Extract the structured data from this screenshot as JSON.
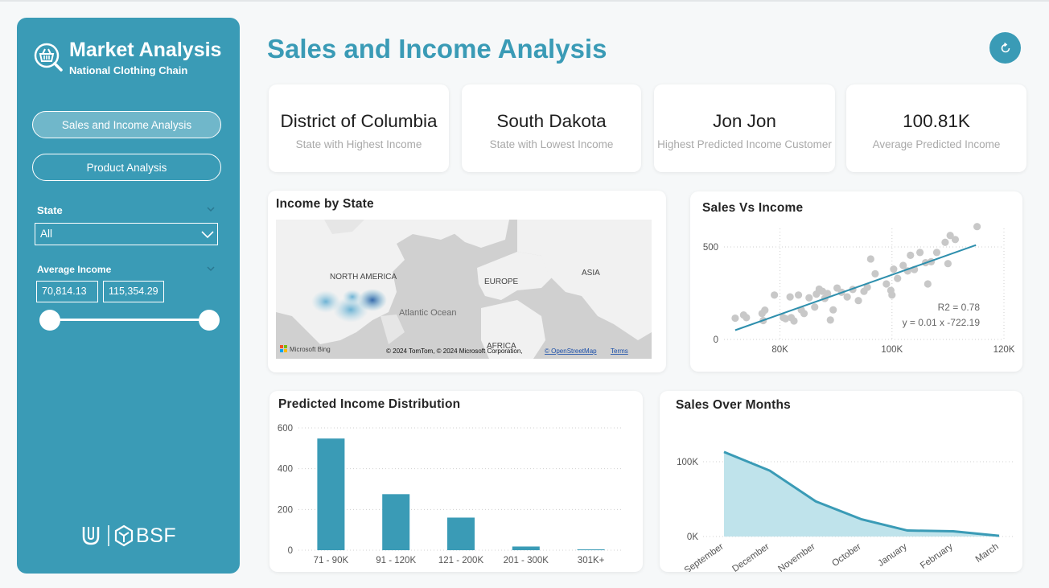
{
  "sidebar": {
    "app_title": "Market Analysis",
    "app_subtitle": "National Clothing Chain",
    "nav": [
      {
        "label": "Sales and Income Analysis",
        "active": true
      },
      {
        "label": "Product Analysis",
        "active": false
      }
    ],
    "filters": {
      "state_label": "State",
      "state_value": "All",
      "income_label": "Average Income",
      "income_min": "70,814.13",
      "income_max": "115,354.29"
    },
    "brand": "BSF"
  },
  "header": {
    "title": "Sales and Income Analysis"
  },
  "kpis": [
    {
      "value": "District of Columbia",
      "label": "State with Highest Income"
    },
    {
      "value": "South Dakota",
      "label": "State with Lowest Income"
    },
    {
      "value": "Jon Jon",
      "label": "Highest Predicted Income Customer"
    },
    {
      "value": "100.81K",
      "label": "Average Predicted Income"
    }
  ],
  "map": {
    "title": "Income by State",
    "labels": [
      "NORTH AMERICA",
      "EUROPE",
      "ASIA",
      "Atlantic Ocean",
      "AFRICA"
    ],
    "provider": "Microsoft Bing",
    "attribution": "© 2024 TomTom, © 2024 Microsoft Corporation,",
    "osm_link": "© OpenStreetMap",
    "terms_link": "Terms"
  },
  "colors": {
    "accent": "#3a9bb6",
    "scatter_point": "#c8c8c8",
    "trend": "#2e8fad",
    "area_fill": "#bfe3eb"
  },
  "charts": [
    {
      "type": "scatter",
      "title": "Sales Vs Income",
      "xlim": [
        70000,
        120000
      ],
      "ylim": [
        0,
        600
      ],
      "x_ticks": [
        "80K",
        "100K",
        "120K"
      ],
      "y_ticks": [
        "0",
        "500"
      ],
      "annotations": [
        "R2 = 0.78",
        "y = 0.01 x -722.19"
      ],
      "points": [
        [
          72000,
          115
        ],
        [
          73500,
          132
        ],
        [
          74000,
          118
        ],
        [
          76800,
          140
        ],
        [
          77300,
          158
        ],
        [
          77000,
          102
        ],
        [
          79000,
          240
        ],
        [
          80600,
          118
        ],
        [
          81000,
          112
        ],
        [
          82000,
          118
        ],
        [
          82500,
          100
        ],
        [
          81800,
          230
        ],
        [
          83300,
          240
        ],
        [
          83800,
          160
        ],
        [
          84300,
          140
        ],
        [
          85200,
          225
        ],
        [
          86200,
          175
        ],
        [
          86500,
          245
        ],
        [
          87000,
          272
        ],
        [
          87600,
          260
        ],
        [
          88000,
          222
        ],
        [
          88500,
          248
        ],
        [
          89000,
          105
        ],
        [
          89500,
          160
        ],
        [
          90200,
          278
        ],
        [
          91000,
          255
        ],
        [
          92000,
          230
        ],
        [
          93000,
          270
        ],
        [
          94000,
          210
        ],
        [
          95000,
          260
        ],
        [
          95600,
          282
        ],
        [
          96200,
          435
        ],
        [
          97000,
          355
        ],
        [
          99000,
          300
        ],
        [
          99800,
          265
        ],
        [
          100300,
          380
        ],
        [
          100000,
          240
        ],
        [
          101000,
          330
        ],
        [
          102000,
          400
        ],
        [
          102800,
          370
        ],
        [
          103300,
          455
        ],
        [
          104000,
          378
        ],
        [
          105000,
          470
        ],
        [
          106000,
          415
        ],
        [
          106400,
          300
        ],
        [
          107000,
          420
        ],
        [
          108000,
          470
        ],
        [
          109500,
          525
        ],
        [
          110000,
          410
        ],
        [
          110400,
          562
        ],
        [
          111300,
          540
        ],
        [
          115200,
          610
        ]
      ],
      "trendline": [
        [
          72000,
          50
        ],
        [
          115000,
          510
        ]
      ]
    },
    {
      "type": "bar",
      "title": "Predicted Income Distribution",
      "categories": [
        "71 - 90K",
        "91 - 120K",
        "121 - 200K",
        "201 - 300K",
        "301K+"
      ],
      "values": [
        548,
        275,
        160,
        18,
        4
      ],
      "ylim": [
        0,
        600
      ],
      "y_ticks": [
        "0",
        "200",
        "400",
        "600"
      ]
    },
    {
      "type": "area",
      "title": "Sales Over Months",
      "categories": [
        "September",
        "December",
        "November",
        "October",
        "January",
        "February",
        "March"
      ],
      "values": [
        113000,
        88000,
        47000,
        23000,
        8000,
        7000,
        1000
      ],
      "ylim": [
        0,
        100000
      ],
      "y_ticks": [
        "0K",
        "100K"
      ]
    }
  ]
}
